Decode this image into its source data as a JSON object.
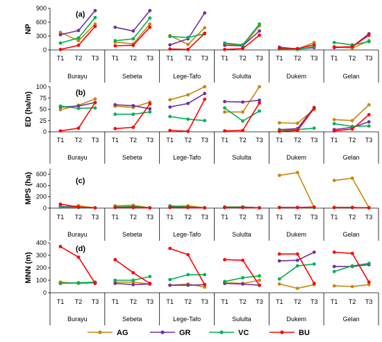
{
  "colors": {
    "AG": "#c8860a",
    "GR": "#7030a0",
    "VC": "#00b050",
    "BU": "#ff0000"
  },
  "chart_data": [
    {
      "type": "line",
      "panel_label": "(a)",
      "ylabel": "NP",
      "ylim": [
        0,
        900
      ],
      "yticks": [
        "0",
        "300",
        "600",
        "900"
      ],
      "sites": [
        "Burayu",
        "Sebeta",
        "Lege-Tafo",
        "Sululta",
        "Dukem",
        "Gelan"
      ],
      "x": [
        "T1",
        "T2",
        "T3"
      ],
      "series": [
        {
          "name": "AG",
          "values": [
            [
              380,
              200,
              560
            ],
            [
              170,
              130,
              560
            ],
            [
              310,
              120,
              480
            ],
            [
              140,
              80,
              520
            ],
            [
              30,
              20,
              160
            ],
            [
              70,
              40,
              200
            ]
          ]
        },
        {
          "name": "GR",
          "values": [
            [
              330,
              420,
              850
            ],
            [
              490,
              410,
              850
            ],
            [
              110,
              240,
              800
            ],
            [
              100,
              90,
              410
            ],
            [
              60,
              20,
              50
            ],
            [
              50,
              70,
              350
            ]
          ]
        },
        {
          "name": "VC",
          "values": [
            [
              150,
              260,
              700
            ],
            [
              200,
              240,
              690
            ],
            [
              290,
              270,
              350
            ],
            [
              150,
              110,
              560
            ],
            [
              20,
              10,
              70
            ],
            [
              160,
              110,
              180
            ]
          ]
        },
        {
          "name": "BU",
          "values": [
            [
              10,
              100,
              510
            ],
            [
              90,
              100,
              490
            ],
            [
              20,
              10,
              360
            ],
            [
              10,
              30,
              320
            ],
            [
              40,
              30,
              110
            ],
            [
              60,
              70,
              320
            ]
          ]
        }
      ]
    },
    {
      "type": "line",
      "panel_label": "(b)",
      "ylabel": "ED (ha/m)",
      "ylim": [
        0,
        100
      ],
      "yticks": [
        "0",
        "25",
        "50",
        "75",
        "100"
      ],
      "sites": [
        "Burayu",
        "Sebeta",
        "Lege-Tafo",
        "Sululta",
        "Dukem",
        "Gelan"
      ],
      "x": [
        "T1",
        "T2",
        "T3"
      ],
      "series": [
        {
          "name": "AG",
          "values": [
            [
              49,
              59,
              73
            ],
            [
              57,
              54,
              66
            ],
            [
              71,
              82,
              100
            ],
            [
              44,
              44,
              100
            ],
            [
              20,
              19,
              50
            ],
            [
              27,
              25,
              60
            ]
          ]
        },
        {
          "name": "GR",
          "values": [
            [
              55,
              57,
              65
            ],
            [
              60,
              58,
              51
            ],
            [
              55,
              63,
              85
            ],
            [
              67,
              66,
              70
            ],
            [
              5,
              7,
              54
            ],
            [
              5,
              10,
              22
            ]
          ]
        },
        {
          "name": "VC",
          "values": [
            [
              57,
              52,
              53
            ],
            [
              39,
              39,
              44
            ],
            [
              34,
              28,
              25
            ],
            [
              53,
              24,
              46
            ],
            [
              4,
              5,
              8
            ],
            [
              18,
              12,
              13
            ]
          ]
        },
        {
          "name": "BU",
          "values": [
            [
              2,
              8,
              65
            ],
            [
              7,
              10,
              62
            ],
            [
              3,
              1,
              72
            ],
            [
              2,
              3,
              64
            ],
            [
              1,
              3,
              52
            ],
            [
              2,
              6,
              38
            ]
          ]
        }
      ]
    },
    {
      "type": "line",
      "panel_label": "(c)",
      "ylabel": "MPS (ha)",
      "ylim": [
        0,
        700
      ],
      "yticks": [
        "0",
        "200",
        "400",
        "600"
      ],
      "sites": [
        "Burayu",
        "Sebeta",
        "Lege-Tafo",
        "Sululta",
        "Dukem",
        "Gelan"
      ],
      "x": [
        "T1",
        "T2",
        "T3"
      ],
      "series": [
        {
          "name": "AG",
          "values": [
            [
              15,
              40,
              5
            ],
            [
              40,
              50,
              5
            ],
            [
              30,
              40,
              5
            ],
            [
              20,
              20,
              5
            ],
            [
              580,
              630,
              10
            ],
            [
              490,
              530,
              10
            ]
          ]
        },
        {
          "name": "GR",
          "values": [
            [
              30,
              10,
              5
            ],
            [
              20,
              20,
              5
            ],
            [
              20,
              10,
              5
            ],
            [
              10,
              20,
              5
            ],
            [
              10,
              10,
              10
            ],
            [
              10,
              10,
              5
            ]
          ]
        },
        {
          "name": "VC",
          "values": [
            [
              20,
              10,
              5
            ],
            [
              20,
              30,
              5
            ],
            [
              40,
              20,
              5
            ],
            [
              20,
              20,
              5
            ],
            [
              10,
              10,
              10
            ],
            [
              10,
              10,
              5
            ]
          ]
        },
        {
          "name": "BU",
          "values": [
            [
              70,
              20,
              5
            ],
            [
              10,
              10,
              5
            ],
            [
              10,
              10,
              5
            ],
            [
              10,
              10,
              5
            ],
            [
              10,
              10,
              20
            ],
            [
              10,
              10,
              5
            ]
          ]
        }
      ]
    },
    {
      "type": "line",
      "panel_label": "(d)",
      "ylabel": "MNN (m)",
      "ylim": [
        0,
        400
      ],
      "yticks": [
        "0",
        "100",
        "200",
        "300",
        "400"
      ],
      "sites": [
        "Burayu",
        "Sebeta",
        "Lege-Tafo",
        "Sululta",
        "Dukem",
        "Gelan"
      ],
      "x": [
        "T1",
        "T2",
        "T3"
      ],
      "series": [
        {
          "name": "AG",
          "values": [
            [
              85,
              75,
              80
            ],
            [
              85,
              85,
              70
            ],
            [
              60,
              70,
              45
            ],
            [
              80,
              75,
              100
            ],
            [
              70,
              35,
              65
            ],
            [
              55,
              50,
              65
            ]
          ]
        },
        {
          "name": "GR",
          "values": [
            [
              75,
              80,
              80
            ],
            [
              75,
              65,
              70
            ],
            [
              60,
              60,
              65
            ],
            [
              75,
              70,
              60
            ],
            [
              255,
              260,
              325
            ],
            [
              210,
              210,
              225
            ]
          ]
        },
        {
          "name": "VC",
          "values": [
            [
              75,
              80,
              85
            ],
            [
              100,
              100,
              130
            ],
            [
              105,
              145,
              145
            ],
            [
              90,
              120,
              135
            ],
            [
              110,
              215,
              230
            ],
            [
              170,
              215,
              235
            ]
          ]
        },
        {
          "name": "BU",
          "values": [
            [
              370,
              285,
              75
            ],
            [
              265,
              160,
              75
            ],
            [
              355,
              305,
              65
            ],
            [
              265,
              260,
              60
            ],
            [
              310,
              310,
              75
            ],
            [
              325,
              315,
              85
            ]
          ]
        }
      ]
    }
  ],
  "legend": [
    {
      "key": "AG",
      "label": "AG"
    },
    {
      "key": "GR",
      "label": "GR"
    },
    {
      "key": "VC",
      "label": "VC"
    },
    {
      "key": "BU",
      "label": "BU"
    }
  ]
}
